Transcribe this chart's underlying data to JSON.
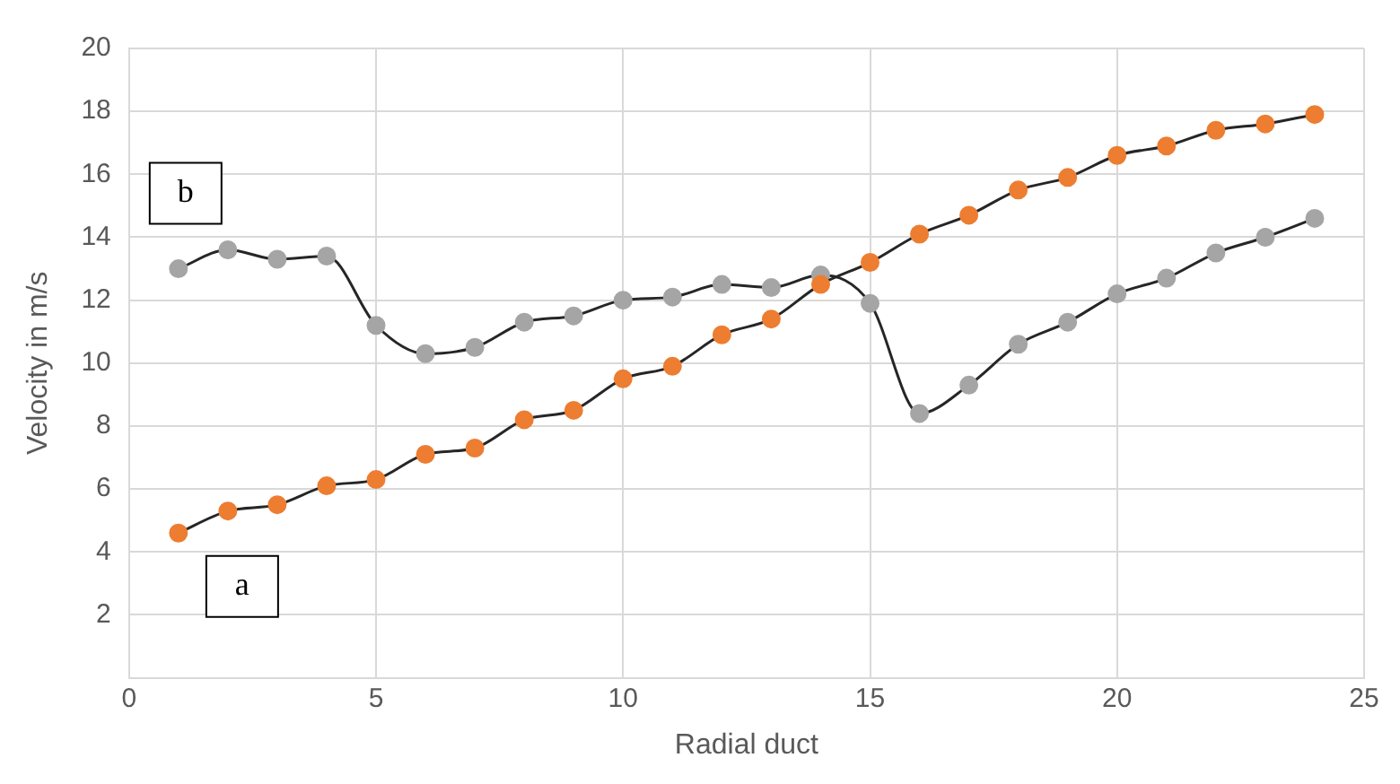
{
  "chart_data": {
    "type": "line",
    "xlabel": "Radial duct",
    "ylabel": "Velocity in m/s",
    "x": [
      1,
      2,
      3,
      4,
      5,
      6,
      7,
      8,
      9,
      10,
      11,
      12,
      13,
      14,
      15,
      16,
      17,
      18,
      19,
      20,
      21,
      22,
      23,
      24
    ],
    "series": [
      {
        "name": "a",
        "color": "#ed7d31",
        "values": [
          4.6,
          5.3,
          5.5,
          6.1,
          6.3,
          7.1,
          7.3,
          8.2,
          8.5,
          9.5,
          9.9,
          10.9,
          11.4,
          12.5,
          13.2,
          14.1,
          14.7,
          15.5,
          15.9,
          16.6,
          16.9,
          17.4,
          17.6,
          17.9
        ]
      },
      {
        "name": "b",
        "color": "#a5a5a5",
        "values": [
          13.0,
          13.6,
          13.3,
          13.4,
          11.2,
          10.3,
          10.5,
          11.3,
          11.5,
          12.0,
          12.1,
          12.5,
          12.4,
          12.8,
          11.9,
          8.4,
          9.3,
          10.6,
          11.3,
          12.2,
          12.7,
          13.5,
          14.0,
          14.6
        ]
      }
    ],
    "xlim": [
      0,
      25
    ],
    "xticks": [
      0,
      5,
      10,
      15,
      20,
      25
    ],
    "ylim": [
      0,
      20
    ],
    "yticks": [
      2,
      4,
      6,
      8,
      10,
      12,
      14,
      16,
      18,
      20
    ],
    "grid": true,
    "legend": false,
    "marker": "circle",
    "line_style": "solid"
  }
}
